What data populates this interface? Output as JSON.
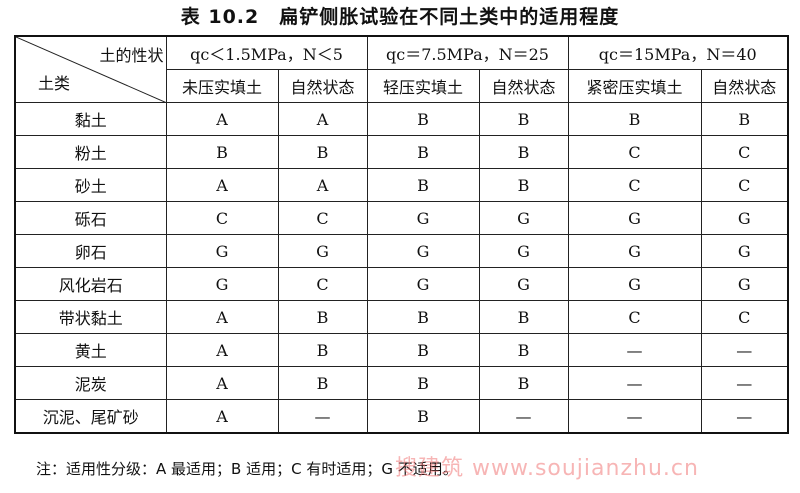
{
  "title": "表 10.2　扁铲侧胀试验在不同土类中的适用程度",
  "corner": {
    "top_right": "土的性状",
    "bottom_left": "土类"
  },
  "groups": [
    "qc＜1.5MPa，N＜5",
    "qc＝7.5MPa，N＝25",
    "qc＝15MPa，N＝40"
  ],
  "subheaders": [
    "未压实填土",
    "自然状态",
    "轻压实填土",
    "自然状态",
    "紧密压实填土",
    "自然状态"
  ],
  "rows": [
    {
      "soil": "黏土",
      "values": [
        "A",
        "A",
        "B",
        "B",
        "B",
        "B"
      ]
    },
    {
      "soil": "粉土",
      "values": [
        "B",
        "B",
        "B",
        "B",
        "C",
        "C"
      ]
    },
    {
      "soil": "砂土",
      "values": [
        "A",
        "A",
        "B",
        "B",
        "C",
        "C"
      ]
    },
    {
      "soil": "砾石",
      "values": [
        "C",
        "C",
        "G",
        "G",
        "G",
        "G"
      ]
    },
    {
      "soil": "卵石",
      "values": [
        "G",
        "G",
        "G",
        "G",
        "G",
        "G"
      ]
    },
    {
      "soil": "风化岩石",
      "values": [
        "G",
        "C",
        "G",
        "G",
        "G",
        "G"
      ]
    },
    {
      "soil": "带状黏土",
      "values": [
        "A",
        "B",
        "B",
        "B",
        "C",
        "C"
      ]
    },
    {
      "soil": "黄土",
      "values": [
        "A",
        "B",
        "B",
        "B",
        "—",
        "—"
      ]
    },
    {
      "soil": "泥炭",
      "values": [
        "A",
        "B",
        "B",
        "B",
        "—",
        "—"
      ]
    },
    {
      "soil": "沉泥、尾矿砂",
      "values": [
        "A",
        "—",
        "B",
        "—",
        "—",
        "—"
      ]
    }
  ],
  "note": "注：适用性分级：A 最适用；B 适用；C 有时适用；G 不适用。",
  "watermark": "搜建筑 www.soujianzhu.cn"
}
